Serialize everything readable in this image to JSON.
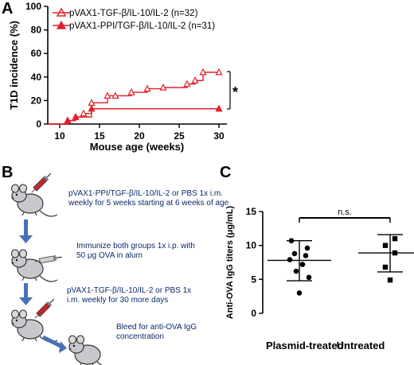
{
  "panels": {
    "a": "A",
    "b": "B",
    "c": "C"
  },
  "chart_data": [
    {
      "type": "line",
      "panel": "A",
      "title": "",
      "xlabel": "Mouse age (weeks)",
      "ylabel": "T1D incidence (%)",
      "xlim": [
        8.5,
        31
      ],
      "ylim": [
        0,
        100
      ],
      "xticks": [
        10,
        15,
        20,
        25,
        30
      ],
      "yticks": [
        0,
        20,
        40,
        60,
        80,
        100
      ],
      "legend_position": "top-left",
      "significance": "*",
      "series": [
        {
          "name": "pVAX1-TGF-β/IL-10/IL-2 (n=32)",
          "color": "#e0202a",
          "marker": "open-triangle",
          "x": [
            8.5,
            11,
            12,
            13,
            14,
            16,
            17,
            19,
            21,
            23,
            26,
            27,
            28,
            30
          ],
          "y": [
            0,
            3,
            6,
            9,
            18,
            24,
            24,
            27,
            30,
            31,
            34,
            37,
            44,
            44
          ],
          "markers_x": [
            11,
            12,
            13,
            14,
            16,
            17,
            19,
            21,
            23,
            26,
            27,
            28,
            30
          ],
          "markers_y": [
            3,
            6,
            9,
            18,
            24,
            24,
            27,
            30,
            31,
            34,
            37,
            44,
            44
          ]
        },
        {
          "name": "pVAX1-PPI/TGF-β/IL-10/IL-2 (n=31)",
          "color": "#e0202a",
          "marker": "filled-triangle",
          "x": [
            8.5,
            11,
            12,
            14,
            30
          ],
          "y": [
            0,
            3,
            6,
            13,
            13
          ],
          "markers_x": [
            11,
            12,
            14,
            30
          ],
          "markers_y": [
            3,
            6,
            13,
            13
          ]
        }
      ]
    },
    {
      "type": "scatter",
      "panel": "C",
      "title": "",
      "ylabel": "Anti-OVA IgG titers (μg/mL)",
      "categories": [
        "Plasmid-treated",
        "Untreated"
      ],
      "ylim": [
        0,
        15
      ],
      "yticks": [
        0,
        5,
        10,
        15
      ],
      "significance": "n.s.",
      "groups": [
        {
          "name": "Plasmid-treated",
          "marker": "circle",
          "values": [
            10.7,
            9.6,
            8.8,
            8.5,
            7.9,
            7.2,
            6.2,
            5.3,
            3.0
          ],
          "mean": 7.8,
          "sd_low": 4.8,
          "sd_high": 10.7
        },
        {
          "name": "Untreated",
          "marker": "square",
          "values": [
            11.0,
            10.0,
            8.9,
            6.8,
            4.9
          ],
          "mean": 8.9,
          "sd_low": 6.1,
          "sd_high": 11.6
        }
      ]
    }
  ],
  "schematic": {
    "steps": [
      {
        "lines": [
          "pVAX1-PPI/TGF-β/IL-10/IL-2 or PBS 1x i.m.",
          "weekly for 5 weeks starting at 6 weeks of age"
        ]
      },
      {
        "lines": [
          "Immunize both groups 1x i.p. with",
          "50 μg OVA in alum"
        ]
      },
      {
        "lines": [
          "pVAX1-TGF-β/IL-10/IL-2 or PBS 1x",
          "i.m. weekly for 30 more days"
        ]
      },
      {
        "lines": [
          "Bleed for anti-OVA IgG",
          "concentration"
        ]
      }
    ],
    "colors": {
      "arrow": "#4a6fb5",
      "mouse_fill": "#c8c8cc",
      "mouse_stroke": "#333333",
      "syringe": "#c0282a"
    },
    "icons": [
      "mouse-icon",
      "syringe-icon",
      "arrow-down-icon"
    ]
  }
}
